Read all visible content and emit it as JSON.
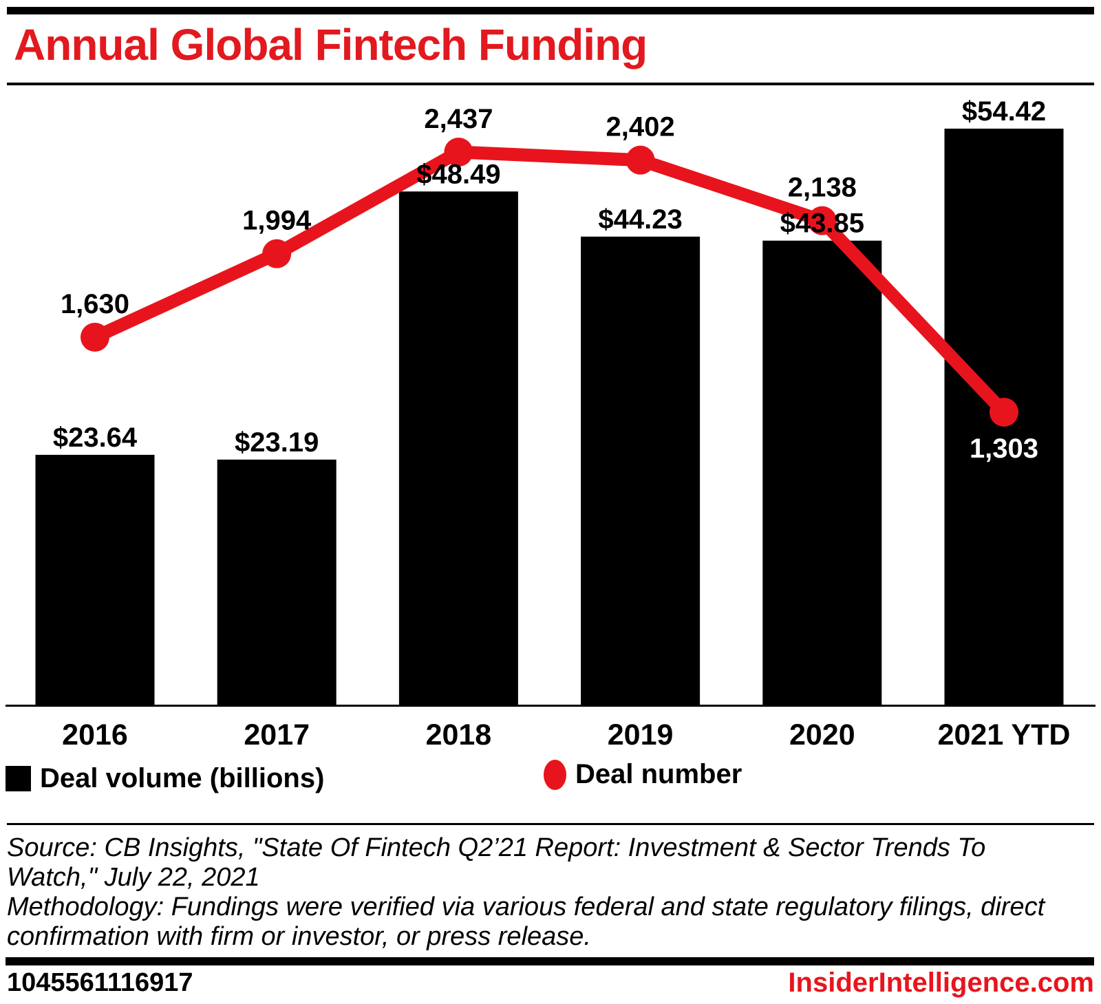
{
  "header": {
    "title": "Annual Global Fintech Funding"
  },
  "chart_data": {
    "type": "bar",
    "combo": "bar+line",
    "categories": [
      "2016",
      "2017",
      "2018",
      "2019",
      "2020",
      "2021 YTD"
    ],
    "series": [
      {
        "name": "Deal volume (billions)",
        "type": "bar",
        "unit": "USD billions",
        "values": [
          23.64,
          23.19,
          48.49,
          44.23,
          43.85,
          54.42
        ],
        "labels": [
          "$23.64",
          "$23.19",
          "$48.49",
          "$44.23",
          "$43.85",
          "$54.42"
        ],
        "color": "#000000"
      },
      {
        "name": "Deal number",
        "type": "line",
        "values": [
          1630,
          1994,
          2437,
          2402,
          2138,
          1303
        ],
        "labels": [
          "1,630",
          "1,994",
          "2,437",
          "2,402",
          "2,138",
          "1,303"
        ],
        "color": "#e8141d"
      }
    ],
    "title": "Annual Global Fintech Funding",
    "xlabel": "",
    "ylabel": "",
    "bar_axis_range": [
      0,
      66.6
    ],
    "line_axis_range": [
      0,
      3100
    ],
    "grid": false,
    "legend_position": "bottom"
  },
  "colors": {
    "accent_red": "#e8141d",
    "title_red": "#e2191f",
    "bar_black": "#000000",
    "inside_label_white": "#ffffff"
  },
  "footer": {
    "source_line1": "Source: CB Insights, \"State Of Fintech Q2’21 Report: Investment & Sector Trends To",
    "source_line2": "Watch,\" July 22, 2021",
    "methodology_line1": "Methodology: Fundings were verified via various federal and state regulatory filings, direct",
    "methodology_line2": "confirmation with firm or investor, or press release.",
    "chart_id": "1045561116917",
    "site": "InsiderIntelligence.com"
  }
}
